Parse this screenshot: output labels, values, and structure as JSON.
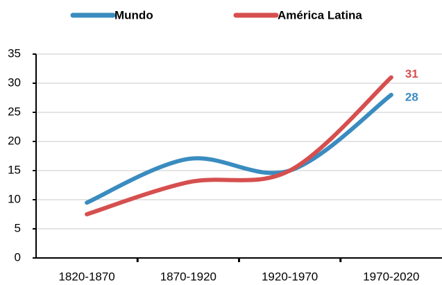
{
  "chart_data": {
    "type": "line",
    "categories": [
      "1820-1870",
      "1870-1920",
      "1920-1970",
      "1970-2020"
    ],
    "series": [
      {
        "name": "Mundo",
        "color": "#3a8cc0",
        "values": [
          9.5,
          17,
          15,
          28
        ]
      },
      {
        "name": "América Latina",
        "color": "#d64f4f",
        "values": [
          7.5,
          13,
          15,
          31
        ]
      }
    ],
    "ylim": [
      0,
      35
    ],
    "yticks": [
      0,
      5,
      10,
      15,
      20,
      25,
      30,
      35
    ],
    "grid": true,
    "legend": "top"
  }
}
